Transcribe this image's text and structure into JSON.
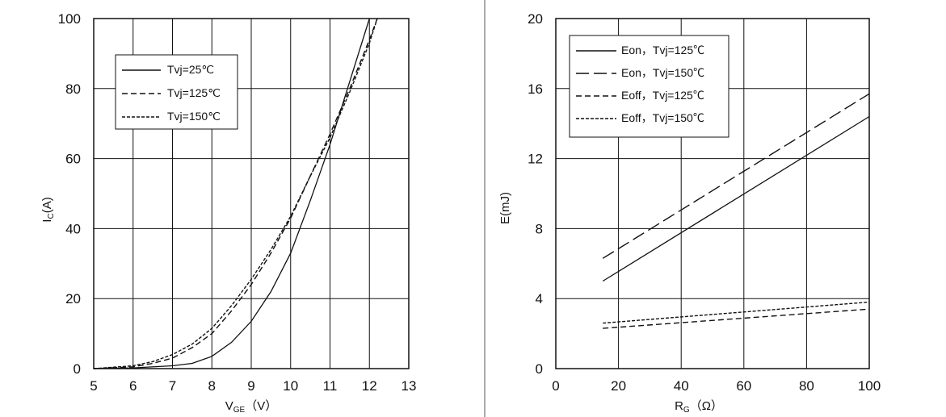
{
  "chart_data": [
    {
      "type": "line",
      "title": "",
      "xlabel": {
        "main": "V",
        "sub": "GE",
        "unit": "（V）"
      },
      "ylabel": {
        "main": "I",
        "sub": "C",
        "unit": "(A)"
      },
      "xlim": [
        5,
        13
      ],
      "ylim": [
        0,
        100
      ],
      "xticks": [
        "5",
        "6",
        "7",
        "8",
        "9",
        "10",
        "11",
        "12",
        "13"
      ],
      "yticks": [
        "0",
        "20",
        "40",
        "60",
        "80",
        "100"
      ],
      "grid": true,
      "legend_position": "top-left",
      "series": [
        {
          "name": "Tvj=25℃",
          "dash": "solid",
          "x": [
            5,
            6,
            7,
            7.5,
            8,
            8.5,
            9,
            9.5,
            10,
            10.5,
            11,
            11.5,
            12
          ],
          "y": [
            0,
            0.2,
            0.8,
            1.5,
            3.5,
            7.5,
            13.5,
            22,
            33,
            48,
            64,
            82,
            100
          ]
        },
        {
          "name": "Tvj=125℃",
          "dash": "dashed",
          "x": [
            5,
            6,
            6.5,
            7,
            7.5,
            8,
            8.5,
            9,
            9.5,
            10,
            10.5,
            11,
            11.5,
            12,
            12.2
          ],
          "y": [
            0,
            0.5,
            1.5,
            3,
            6,
            10,
            16.5,
            24,
            33,
            43,
            55,
            67,
            80,
            94,
            100
          ]
        },
        {
          "name": "Tvj=150℃",
          "dash": "dotted",
          "x": [
            5,
            6,
            6.5,
            7,
            7.5,
            8,
            8.5,
            9,
            9.5,
            10,
            10.5,
            11,
            11.5,
            12,
            12.2
          ],
          "y": [
            0,
            0.8,
            2,
            4,
            7,
            11.5,
            18,
            25.5,
            34,
            43.5,
            55,
            66,
            79,
            93,
            100
          ]
        }
      ]
    },
    {
      "type": "line",
      "title": "",
      "xlabel": {
        "main": "R",
        "sub": "G",
        "unit": "（Ω）"
      },
      "ylabel": {
        "main": "E(mJ)",
        "sub": "",
        "unit": ""
      },
      "xlim": [
        0,
        100
      ],
      "ylim": [
        0,
        20
      ],
      "xticks": [
        "0",
        "20",
        "40",
        "60",
        "80",
        "100"
      ],
      "yticks": [
        "0",
        "4",
        "8",
        "12",
        "16",
        "20"
      ],
      "grid": true,
      "legend_position": "top-left",
      "series": [
        {
          "name": "Eon，Tvj=125℃",
          "dash": "solid",
          "x": [
            15,
            100
          ],
          "y": [
            5.0,
            14.4
          ]
        },
        {
          "name": "Eon，Tvj=150℃",
          "dash": "longdash",
          "x": [
            15,
            100
          ],
          "y": [
            6.3,
            15.7
          ]
        },
        {
          "name": "Eoff，Tvj=125℃",
          "dash": "dashed",
          "x": [
            15,
            100
          ],
          "y": [
            2.3,
            3.4
          ]
        },
        {
          "name": "Eoff，Tvj=150℃",
          "dash": "dotted",
          "x": [
            15,
            100
          ],
          "y": [
            2.6,
            3.8
          ]
        }
      ]
    }
  ]
}
